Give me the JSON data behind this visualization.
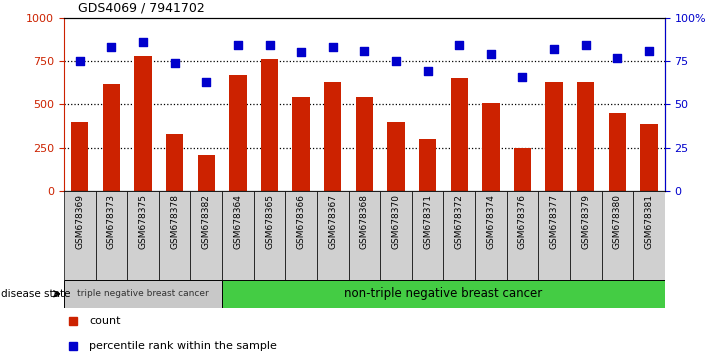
{
  "title": "GDS4069 / 7941702",
  "samples": [
    "GSM678369",
    "GSM678373",
    "GSM678375",
    "GSM678378",
    "GSM678382",
    "GSM678364",
    "GSM678365",
    "GSM678366",
    "GSM678367",
    "GSM678368",
    "GSM678370",
    "GSM678371",
    "GSM678372",
    "GSM678374",
    "GSM678376",
    "GSM678377",
    "GSM678379",
    "GSM678380",
    "GSM678381"
  ],
  "counts": [
    400,
    620,
    780,
    330,
    210,
    670,
    760,
    540,
    630,
    540,
    400,
    300,
    650,
    510,
    250,
    630,
    630,
    450,
    390
  ],
  "percentiles": [
    75,
    83,
    86,
    74,
    63,
    84,
    84,
    80,
    83,
    81,
    75,
    69,
    84,
    79,
    66,
    82,
    84,
    77,
    81
  ],
  "triple_neg_count": 5,
  "non_triple_neg_count": 14,
  "bar_color": "#cc2200",
  "dot_color": "#0000cc",
  "group1_bg": "#c8c8c8",
  "group2_bg": "#44cc44",
  "xtick_bg": "#d0d0d0",
  "group1_label": "triple negative breast cancer",
  "group2_label": "non-triple negative breast cancer",
  "disease_state_label": "disease state",
  "legend_bar": "count",
  "legend_dot": "percentile rank within the sample",
  "ylim_left": [
    0,
    1000
  ],
  "ylim_right": [
    0,
    100
  ],
  "yticks_left": [
    0,
    250,
    500,
    750,
    1000
  ],
  "yticks_right": [
    0,
    25,
    50,
    75,
    100
  ],
  "ytick_labels_left": [
    "0",
    "250",
    "500",
    "750",
    "1000"
  ],
  "ytick_labels_right": [
    "0",
    "25",
    "50",
    "75",
    "100%"
  ],
  "dotted_lines": [
    250,
    500,
    750
  ]
}
